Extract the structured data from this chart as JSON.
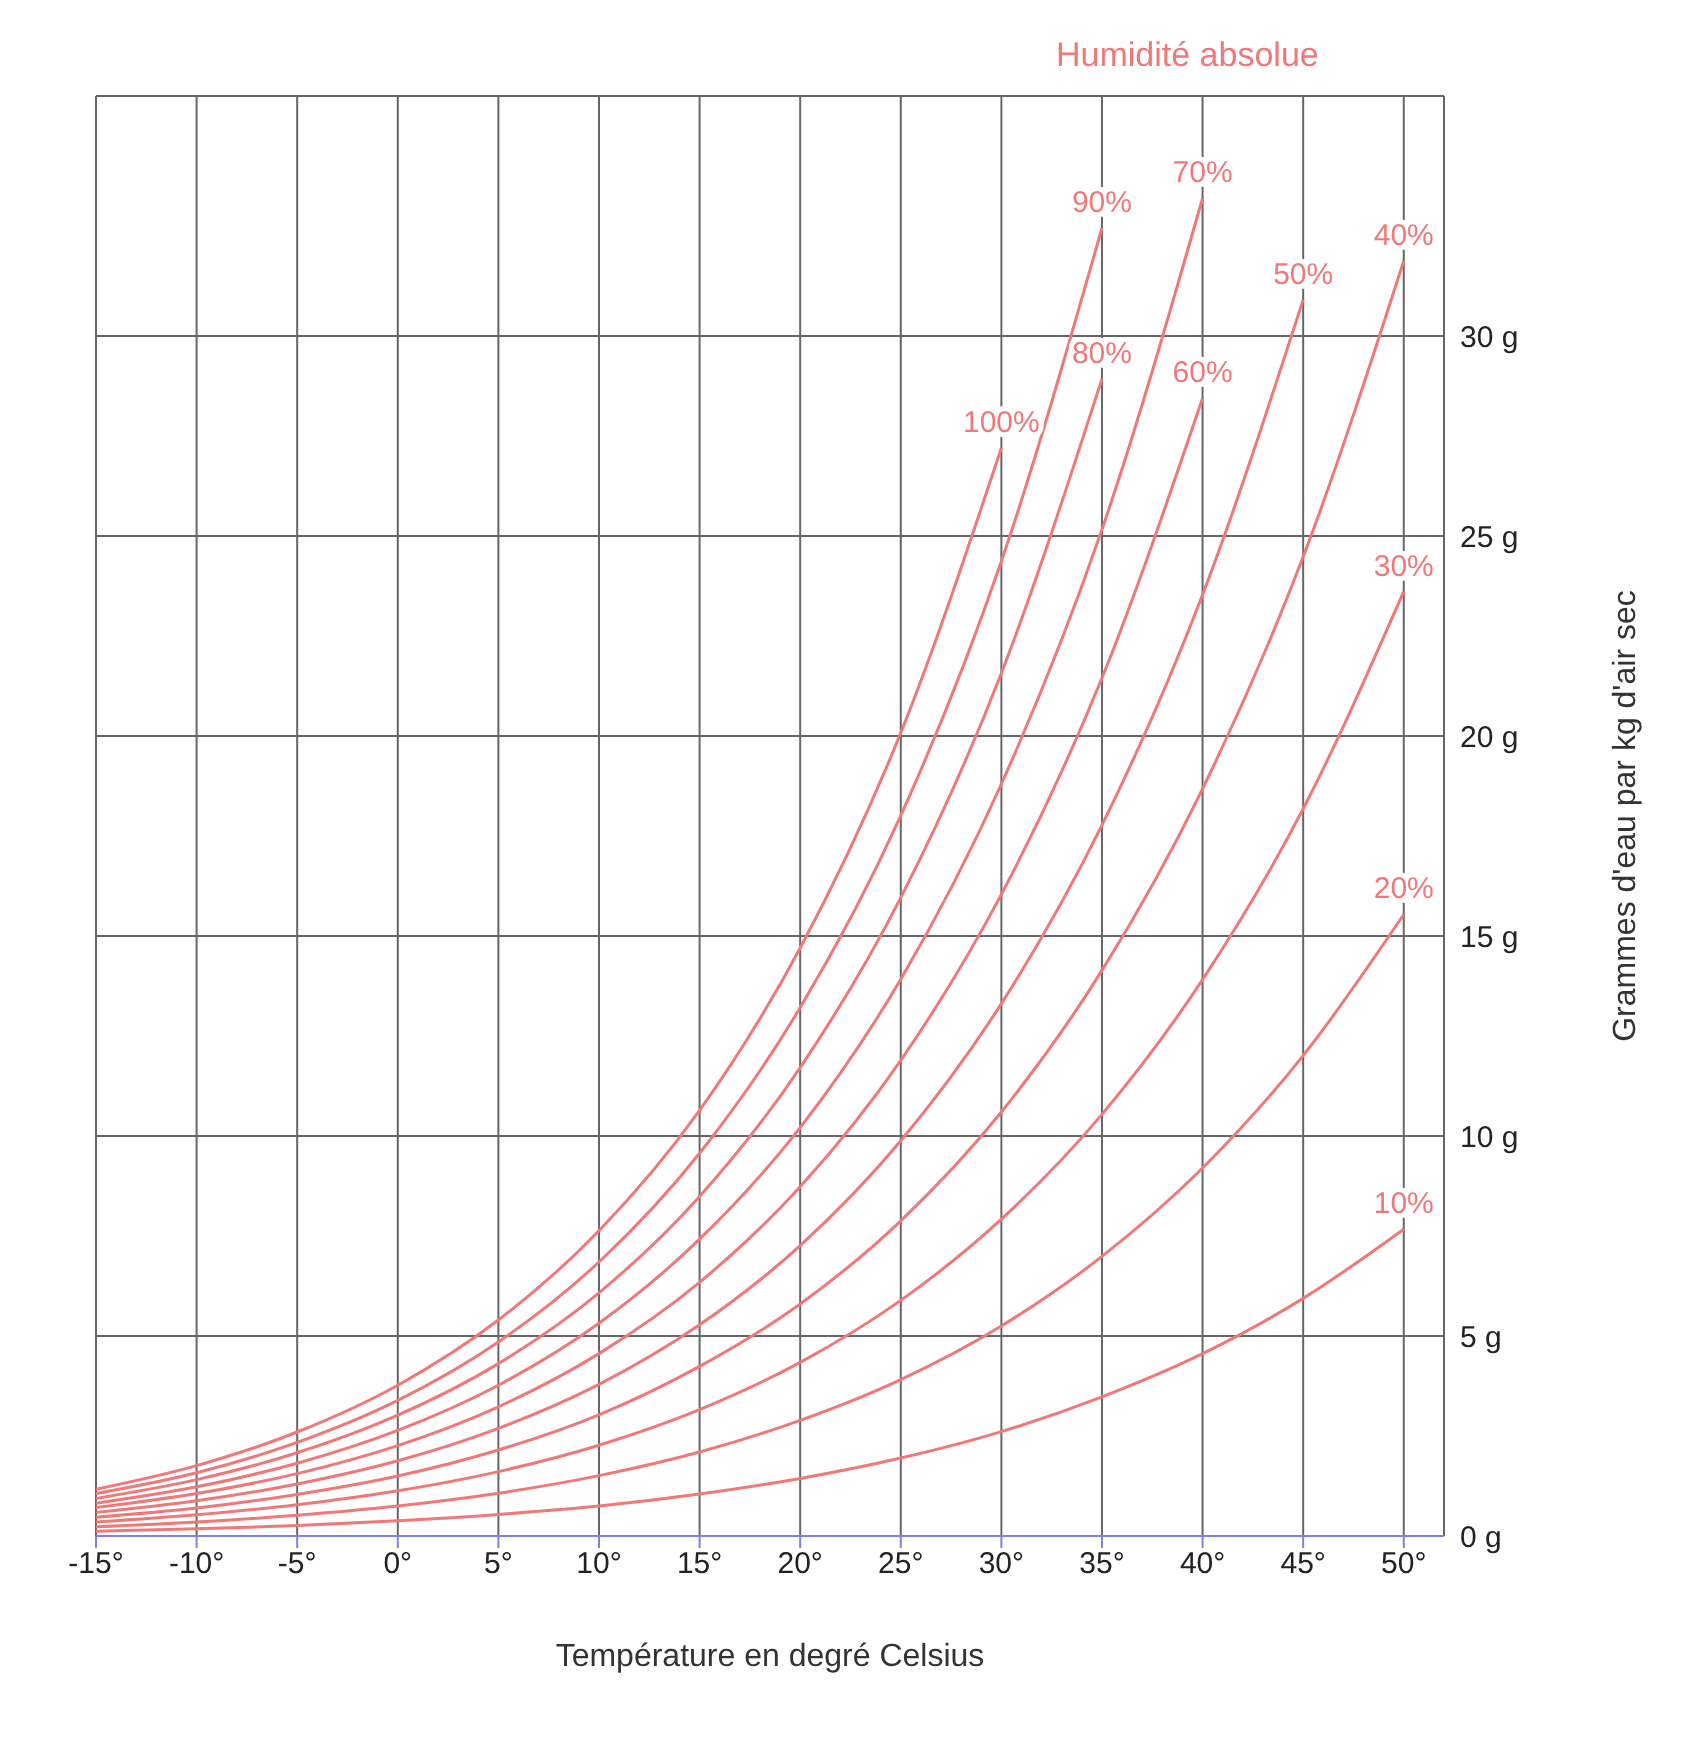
{
  "chart_data": {
    "type": "line",
    "title": "Humidité absolue",
    "xlabel": "Température en degré Celsius",
    "ylabel": "Grammes d'eau par kg d'air sec",
    "x": [
      -15,
      -10,
      -5,
      0,
      5,
      10,
      15,
      20,
      25,
      30,
      35,
      40,
      45,
      50
    ],
    "series": [
      {
        "name": "100%",
        "color": "#f07878",
        "values": [
          1.17,
          1.76,
          2.6,
          3.77,
          5.4,
          7.63,
          10.64,
          14.7,
          20.08,
          27.2,
          null,
          null,
          null,
          null
        ]
      },
      {
        "name": "90%",
        "color": "#f07878",
        "values": [
          1.06,
          1.58,
          2.34,
          3.39,
          4.85,
          6.85,
          9.57,
          13.21,
          18.01,
          24.37,
          32.7,
          null,
          null,
          null
        ]
      },
      {
        "name": "80%",
        "color": "#f07878",
        "values": [
          0.94,
          1.41,
          2.08,
          3.02,
          4.31,
          6.08,
          8.49,
          11.71,
          15.96,
          21.57,
          28.93,
          null,
          null,
          null
        ]
      },
      {
        "name": "70%",
        "color": "#f07878",
        "values": [
          0.82,
          1.23,
          1.82,
          2.64,
          3.77,
          5.32,
          7.42,
          10.21,
          13.92,
          18.8,
          25.16,
          33.44,
          null,
          null
        ]
      },
      {
        "name": "60%",
        "color": "#f07878",
        "values": [
          0.71,
          1.06,
          1.56,
          2.26,
          3.23,
          4.56,
          6.34,
          8.73,
          11.89,
          16.04,
          21.45,
          28.44,
          null,
          null
        ]
      },
      {
        "name": "50%",
        "color": "#f07878",
        "values": [
          0.59,
          0.88,
          1.3,
          1.88,
          2.69,
          3.79,
          5.28,
          7.26,
          9.88,
          13.31,
          17.77,
          23.53,
          30.91,
          null
        ]
      },
      {
        "name": "40%",
        "color": "#f07878",
        "values": [
          0.47,
          0.7,
          1.04,
          1.5,
          2.15,
          3.03,
          4.24,
          5.8,
          7.88,
          10.6,
          14.14,
          18.68,
          24.48,
          31.88
        ]
      },
      {
        "name": "30%",
        "color": "#f07878",
        "values": [
          0.35,
          0.53,
          0.78,
          1.13,
          1.61,
          2.27,
          3.16,
          4.34,
          5.89,
          7.92,
          10.54,
          13.91,
          18.18,
          23.61
        ]
      },
      {
        "name": "20%",
        "color": "#f07878",
        "values": [
          0.23,
          0.35,
          0.52,
          0.75,
          1.07,
          1.51,
          2.1,
          2.89,
          3.91,
          5.25,
          6.99,
          9.2,
          12.01,
          15.54
        ]
      },
      {
        "name": "10%",
        "color": "#f07878",
        "values": [
          0.12,
          0.18,
          0.26,
          0.38,
          0.54,
          0.75,
          1.05,
          1.44,
          1.95,
          2.61,
          3.48,
          4.56,
          5.94,
          7.67
        ]
      }
    ],
    "xlim": [
      -15,
      52
    ],
    "xticks": [
      {
        "value": -15,
        "label": "-15°"
      },
      {
        "value": -10,
        "label": "-10°"
      },
      {
        "value": -5,
        "label": "-5°"
      },
      {
        "value": 0,
        "label": "0°"
      },
      {
        "value": 5,
        "label": "5°"
      },
      {
        "value": 10,
        "label": "10°"
      },
      {
        "value": 15,
        "label": "15°"
      },
      {
        "value": 20,
        "label": "20°"
      },
      {
        "value": 25,
        "label": "25°"
      },
      {
        "value": 30,
        "label": "30°"
      },
      {
        "value": 35,
        "label": "35°"
      },
      {
        "value": 40,
        "label": "40°"
      },
      {
        "value": 45,
        "label": "45°"
      },
      {
        "value": 50,
        "label": "50°"
      }
    ],
    "ylim": [
      0,
      36
    ],
    "yticks": [
      {
        "value": 0,
        "label": "0 g"
      },
      {
        "value": 5,
        "label": "5 g"
      },
      {
        "value": 10,
        "label": "10 g"
      },
      {
        "value": 15,
        "label": "15 g"
      },
      {
        "value": 20,
        "label": "20 g"
      },
      {
        "value": 25,
        "label": "25 g"
      },
      {
        "value": 30,
        "label": "30 g"
      }
    ],
    "grid": true,
    "legend": false,
    "marker": "none",
    "line_style": "solid"
  }
}
